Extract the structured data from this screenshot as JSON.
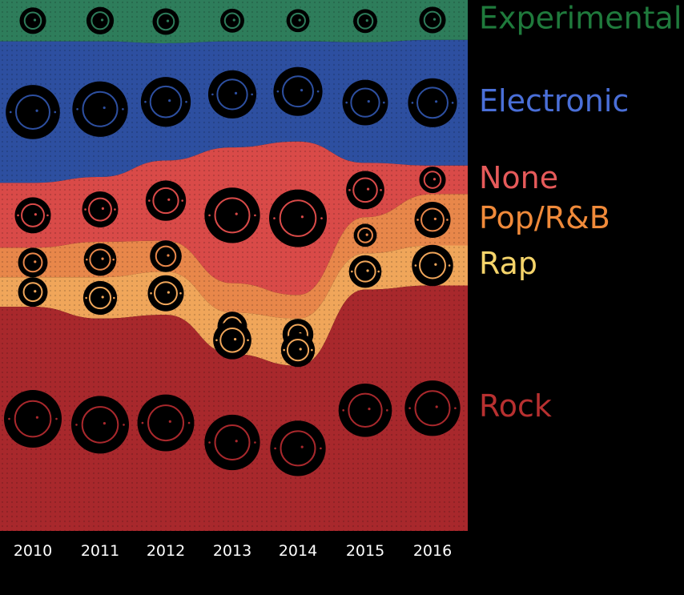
{
  "chart_data": {
    "type": "area",
    "subtype": "stacked streamgraph with record-shaped markers",
    "title": "",
    "xlabel": "",
    "ylabel": "",
    "x": [
      "2010",
      "2011",
      "2012",
      "2013",
      "2014",
      "2015",
      "2016"
    ],
    "legend_placement": "right",
    "series": [
      {
        "name": "Experimental",
        "color": "#2e7d5b",
        "label_color": "#1f7a3c",
        "values": [
          0.07,
          0.07,
          0.07,
          0.07,
          0.07,
          0.07,
          0.07
        ],
        "records": [
          [
            0.28
          ],
          [
            0.3
          ],
          [
            0.28
          ],
          [
            0.22
          ],
          [
            0.2
          ],
          [
            0.22
          ],
          [
            0.28
          ]
        ]
      },
      {
        "name": "Electronic",
        "color": "#2d4fa0",
        "label_color": "#4a6fd8",
        "values": [
          0.24,
          0.23,
          0.19,
          0.18,
          0.17,
          0.2,
          0.22
        ],
        "records": [
          [
            0.92
          ],
          [
            0.95
          ],
          [
            0.82
          ],
          [
            0.78
          ],
          [
            0.8
          ],
          [
            0.72
          ],
          [
            0.8
          ]
        ]
      },
      {
        "name": "None",
        "color": "#d94a48",
        "label_color": "#e65a5a",
        "values": [
          0.11,
          0.11,
          0.13,
          0.23,
          0.26,
          0.09,
          0.05
        ],
        "records": [
          [
            0.5
          ],
          [
            0.5
          ],
          [
            0.6
          ],
          [
            0.95
          ],
          [
            1.0
          ],
          [
            0.55
          ],
          [
            0.28
          ]
        ]
      },
      {
        "name": "Pop/R&B",
        "color": "#e8874a",
        "label_color": "#f08a3a",
        "values": [
          0.05,
          0.06,
          0.05,
          0.05,
          0.04,
          0.06,
          0.09
        ],
        "records": [
          [
            0.35
          ],
          [
            0.42
          ],
          [
            0.4
          ],
          [
            0.0
          ],
          [
            0.0
          ],
          [
            0.2
          ],
          [
            0.5
          ]
        ]
      },
      {
        "name": "Rap",
        "color": "#f0a65a",
        "label_color": "#f5d46a",
        "values": [
          0.05,
          0.07,
          0.07,
          0.07,
          0.08,
          0.06,
          0.07
        ],
        "records": [
          [
            0.35,
            0.0
          ],
          [
            0.45,
            0.0
          ],
          [
            0.5,
            0.0
          ],
          [
            0.35,
            0.55
          ],
          [
            0.38,
            0.45
          ],
          [
            0.42,
            0.0
          ],
          [
            0.62,
            0.0
          ]
        ]
      },
      {
        "name": "Rock",
        "color": "#a8282c",
        "label_color": "#b83030",
        "values": [
          0.38,
          0.36,
          0.35,
          0.3,
          0.28,
          0.4,
          0.43
        ],
        "records": [
          [
            1.0
          ],
          [
            1.0
          ],
          [
            0.98
          ],
          [
            0.95
          ],
          [
            0.95
          ],
          [
            0.9
          ],
          [
            0.95
          ]
        ]
      }
    ]
  }
}
